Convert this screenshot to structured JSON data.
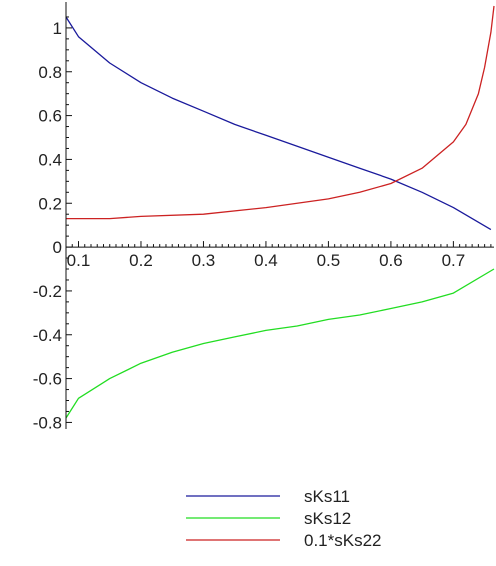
{
  "chart_data": {
    "type": "line",
    "title": "",
    "xlabel": "",
    "ylabel": "",
    "xlim": [
      0.08,
      0.765
    ],
    "ylim": [
      -0.83,
      1.1
    ],
    "x_ticks": [
      0.1,
      0.2,
      0.3,
      0.4,
      0.5,
      0.6,
      0.7
    ],
    "x_tick_labels": [
      "0.1",
      "0.2",
      "0.3",
      "0.4",
      "0.5",
      "0.6",
      "0.7"
    ],
    "y_ticks": [
      1,
      0.8,
      0.6,
      0.4,
      0.2,
      0,
      -0.2,
      -0.4,
      -0.6,
      -0.8
    ],
    "y_tick_labels": [
      "1",
      "0.8",
      "0.6",
      "0.4",
      "0.2",
      "0",
      "-0.2",
      "-0.4",
      "-0.6",
      "-0.8"
    ],
    "grid": false,
    "legend_position": "bottom-center",
    "series": [
      {
        "name": "sKs11",
        "color": "#1a1a9c",
        "x": [
          0.08,
          0.1,
          0.15,
          0.2,
          0.25,
          0.3,
          0.35,
          0.4,
          0.45,
          0.5,
          0.55,
          0.6,
          0.65,
          0.7,
          0.76
        ],
        "y": [
          1.05,
          0.96,
          0.84,
          0.75,
          0.68,
          0.62,
          0.56,
          0.51,
          0.46,
          0.41,
          0.36,
          0.31,
          0.25,
          0.18,
          0.08
        ]
      },
      {
        "name": "sKs12",
        "color": "#22dd22",
        "x": [
          0.08,
          0.1,
          0.15,
          0.2,
          0.25,
          0.3,
          0.35,
          0.4,
          0.45,
          0.5,
          0.55,
          0.6,
          0.65,
          0.7,
          0.765
        ],
        "y": [
          -0.78,
          -0.69,
          -0.6,
          -0.53,
          -0.48,
          -0.44,
          -0.41,
          -0.38,
          -0.36,
          -0.33,
          -0.31,
          -0.28,
          -0.25,
          -0.21,
          -0.1
        ]
      },
      {
        "name": "0.1*sKs22",
        "color": "#cc2222",
        "x": [
          0.08,
          0.15,
          0.2,
          0.3,
          0.4,
          0.5,
          0.55,
          0.6,
          0.65,
          0.7,
          0.72,
          0.74,
          0.75,
          0.76,
          0.765
        ],
        "y": [
          0.13,
          0.13,
          0.14,
          0.15,
          0.18,
          0.22,
          0.25,
          0.29,
          0.36,
          0.48,
          0.56,
          0.7,
          0.82,
          0.98,
          1.1
        ]
      }
    ]
  }
}
